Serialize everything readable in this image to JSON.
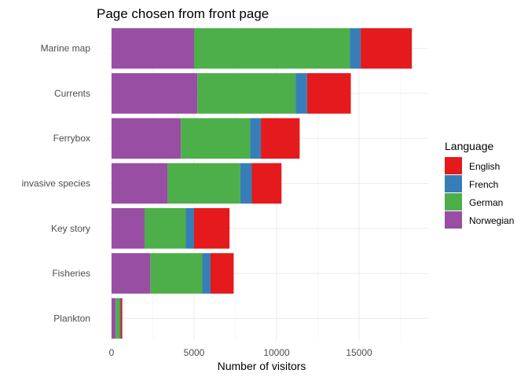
{
  "chart_data": {
    "type": "bar",
    "orientation": "horizontal",
    "stacked": true,
    "title": "Page chosen from front page",
    "xlabel": "Number of visitors",
    "ylabel": "",
    "xlim": [
      0,
      18500
    ],
    "x_ticks": [
      0,
      5000,
      10000,
      15000
    ],
    "categories": [
      "Marine map",
      "Currents",
      "Ferrybox",
      "invasive species",
      "Key story",
      "Fisheries",
      "Plankton"
    ],
    "series": [
      {
        "name": "Norwegian",
        "color": "#984EA3",
        "values": [
          5000,
          5200,
          4200,
          3400,
          2000,
          2350,
          250
        ]
      },
      {
        "name": "German",
        "color": "#4DAF4A",
        "values": [
          9450,
          5950,
          4200,
          4400,
          2500,
          3150,
          250
        ]
      },
      {
        "name": "French",
        "color": "#377EB8",
        "values": [
          650,
          700,
          650,
          700,
          500,
          500,
          50
        ]
      },
      {
        "name": "English",
        "color": "#E41A1C",
        "values": [
          3100,
          2650,
          2350,
          1800,
          2150,
          1400,
          100
        ]
      }
    ],
    "legend": {
      "title": "Language",
      "position": "right",
      "order": [
        "English",
        "French",
        "German",
        "Norwegian"
      ]
    },
    "grid": true
  }
}
